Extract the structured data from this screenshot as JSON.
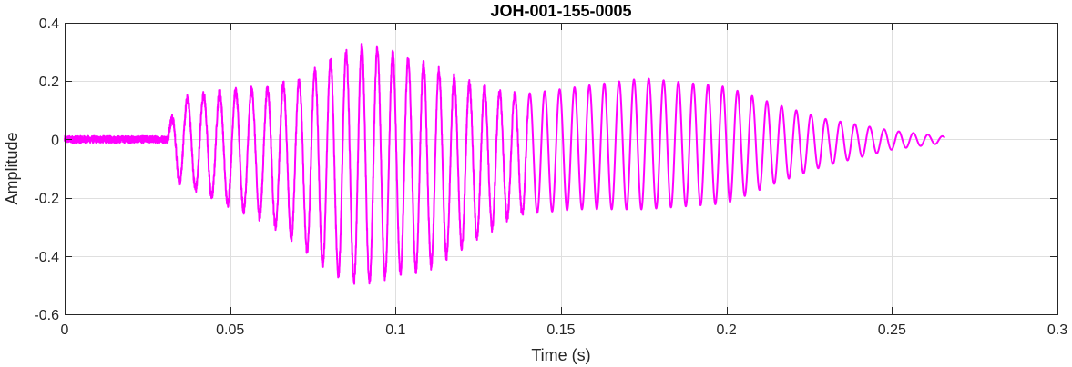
{
  "chart_data": {
    "type": "line",
    "title": "JOH-001-155-0005",
    "xlabel": "Time (s)",
    "ylabel": "Amplitude",
    "xlim": [
      0,
      0.3
    ],
    "ylim": [
      -0.6,
      0.4
    ],
    "xticks": [
      0,
      0.05,
      0.1,
      0.15,
      0.2,
      0.25,
      0.3
    ],
    "xtick_labels": [
      "0",
      "0.05",
      "0.1",
      "0.15",
      "0.2",
      "0.25",
      "0.3"
    ],
    "yticks": [
      -0.6,
      -0.4,
      -0.2,
      0,
      0.2,
      0.4
    ],
    "ytick_labels": [
      "-0.6",
      "-0.4",
      "-0.2",
      "0",
      "0.2",
      "0.4"
    ],
    "grid": true,
    "line_color": "#ff00ff",
    "signal": {
      "start_time": 0,
      "end_time": 0.266,
      "onset_time": 0.031,
      "pre_onset_noise_amplitude": 0.012,
      "envelope_keyframes": [
        {
          "t": 0.031,
          "pos": 0.02,
          "neg": -0.02
        },
        {
          "t": 0.034,
          "pos": 0.13,
          "neg": -0.14
        },
        {
          "t": 0.045,
          "pos": 0.16,
          "neg": -0.2
        },
        {
          "t": 0.06,
          "pos": 0.17,
          "neg": -0.27
        },
        {
          "t": 0.07,
          "pos": 0.2,
          "neg": -0.35
        },
        {
          "t": 0.08,
          "pos": 0.27,
          "neg": -0.45
        },
        {
          "t": 0.09,
          "pos": 0.32,
          "neg": -0.5
        },
        {
          "t": 0.1,
          "pos": 0.29,
          "neg": -0.46
        },
        {
          "t": 0.11,
          "pos": 0.25,
          "neg": -0.44
        },
        {
          "t": 0.12,
          "pos": 0.2,
          "neg": -0.37
        },
        {
          "t": 0.135,
          "pos": 0.15,
          "neg": -0.26
        },
        {
          "t": 0.155,
          "pos": 0.18,
          "neg": -0.24
        },
        {
          "t": 0.175,
          "pos": 0.21,
          "neg": -0.24
        },
        {
          "t": 0.2,
          "pos": 0.18,
          "neg": -0.22
        },
        {
          "t": 0.215,
          "pos": 0.12,
          "neg": -0.15
        },
        {
          "t": 0.23,
          "pos": 0.07,
          "neg": -0.09
        },
        {
          "t": 0.25,
          "pos": 0.03,
          "neg": -0.035
        },
        {
          "t": 0.266,
          "pos": 0.01,
          "neg": -0.012
        }
      ],
      "period_keyframes": [
        {
          "t": 0.03,
          "period": 0.0049
        },
        {
          "t": 0.15,
          "period": 0.0045
        },
        {
          "t": 0.266,
          "period": 0.0044
        }
      ]
    }
  }
}
